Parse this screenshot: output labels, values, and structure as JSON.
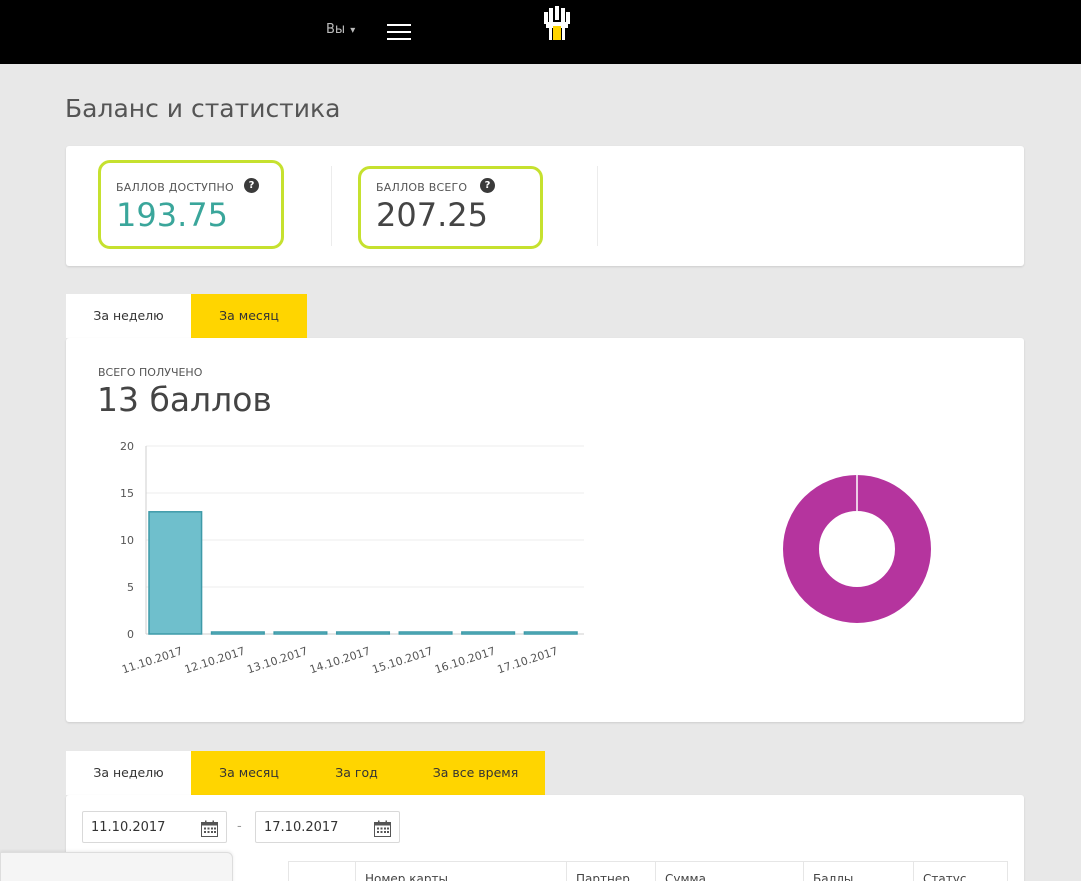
{
  "header": {
    "user_label": "Вы",
    "user_caret": "▾",
    "logo_icon": "rosneft-logo-icon",
    "menu_icon": "hamburger-icon",
    "colors": {
      "bar": "#000000",
      "accent": "#ffd500"
    }
  },
  "page": {
    "title": "Баланс и статистика"
  },
  "balance": {
    "available": {
      "label": "БАЛЛОВ ДОСТУПНО",
      "value": "193.75",
      "help": "?"
    },
    "total": {
      "label": "БАЛЛОВ ВСЕГО",
      "value": "207.25",
      "help": "?"
    },
    "highlight_color": "#c6e12f"
  },
  "stats_tabs": [
    {
      "label": "За неделю",
      "active": true
    },
    {
      "label": "За месяц",
      "active": false
    }
  ],
  "stats": {
    "received_label": "ВСЕГО ПОЛУЧЕНО",
    "received_value": "13 баллов"
  },
  "chart_data": [
    {
      "type": "bar",
      "categories": [
        "11.10.2017",
        "12.10.2017",
        "13.10.2017",
        "14.10.2017",
        "15.10.2017",
        "16.10.2017",
        "17.10.2017"
      ],
      "values": [
        13,
        0,
        0,
        0,
        0,
        0,
        0
      ],
      "ylim": [
        0,
        20
      ],
      "yticks": [
        0,
        5,
        10,
        15,
        20
      ],
      "grid": true,
      "color": "#6fbfcc",
      "stroke": "#3d9aa8"
    },
    {
      "type": "pie",
      "donut": true,
      "values": [
        13
      ],
      "colors": [
        "#b5349e"
      ]
    }
  ],
  "history_tabs": [
    {
      "label": "За неделю",
      "active": true
    },
    {
      "label": "За месяц",
      "active": false
    },
    {
      "label": "За год",
      "active": false
    },
    {
      "label": "За все время",
      "active": false
    }
  ],
  "history": {
    "date_from": "11.10.2017",
    "date_to": "17.10.2017",
    "separator": "-",
    "calendar_icon": "calendar-icon",
    "columns": [
      "Номер карты",
      "Партнер",
      "Сумма",
      "Баллы",
      "Статус"
    ]
  }
}
